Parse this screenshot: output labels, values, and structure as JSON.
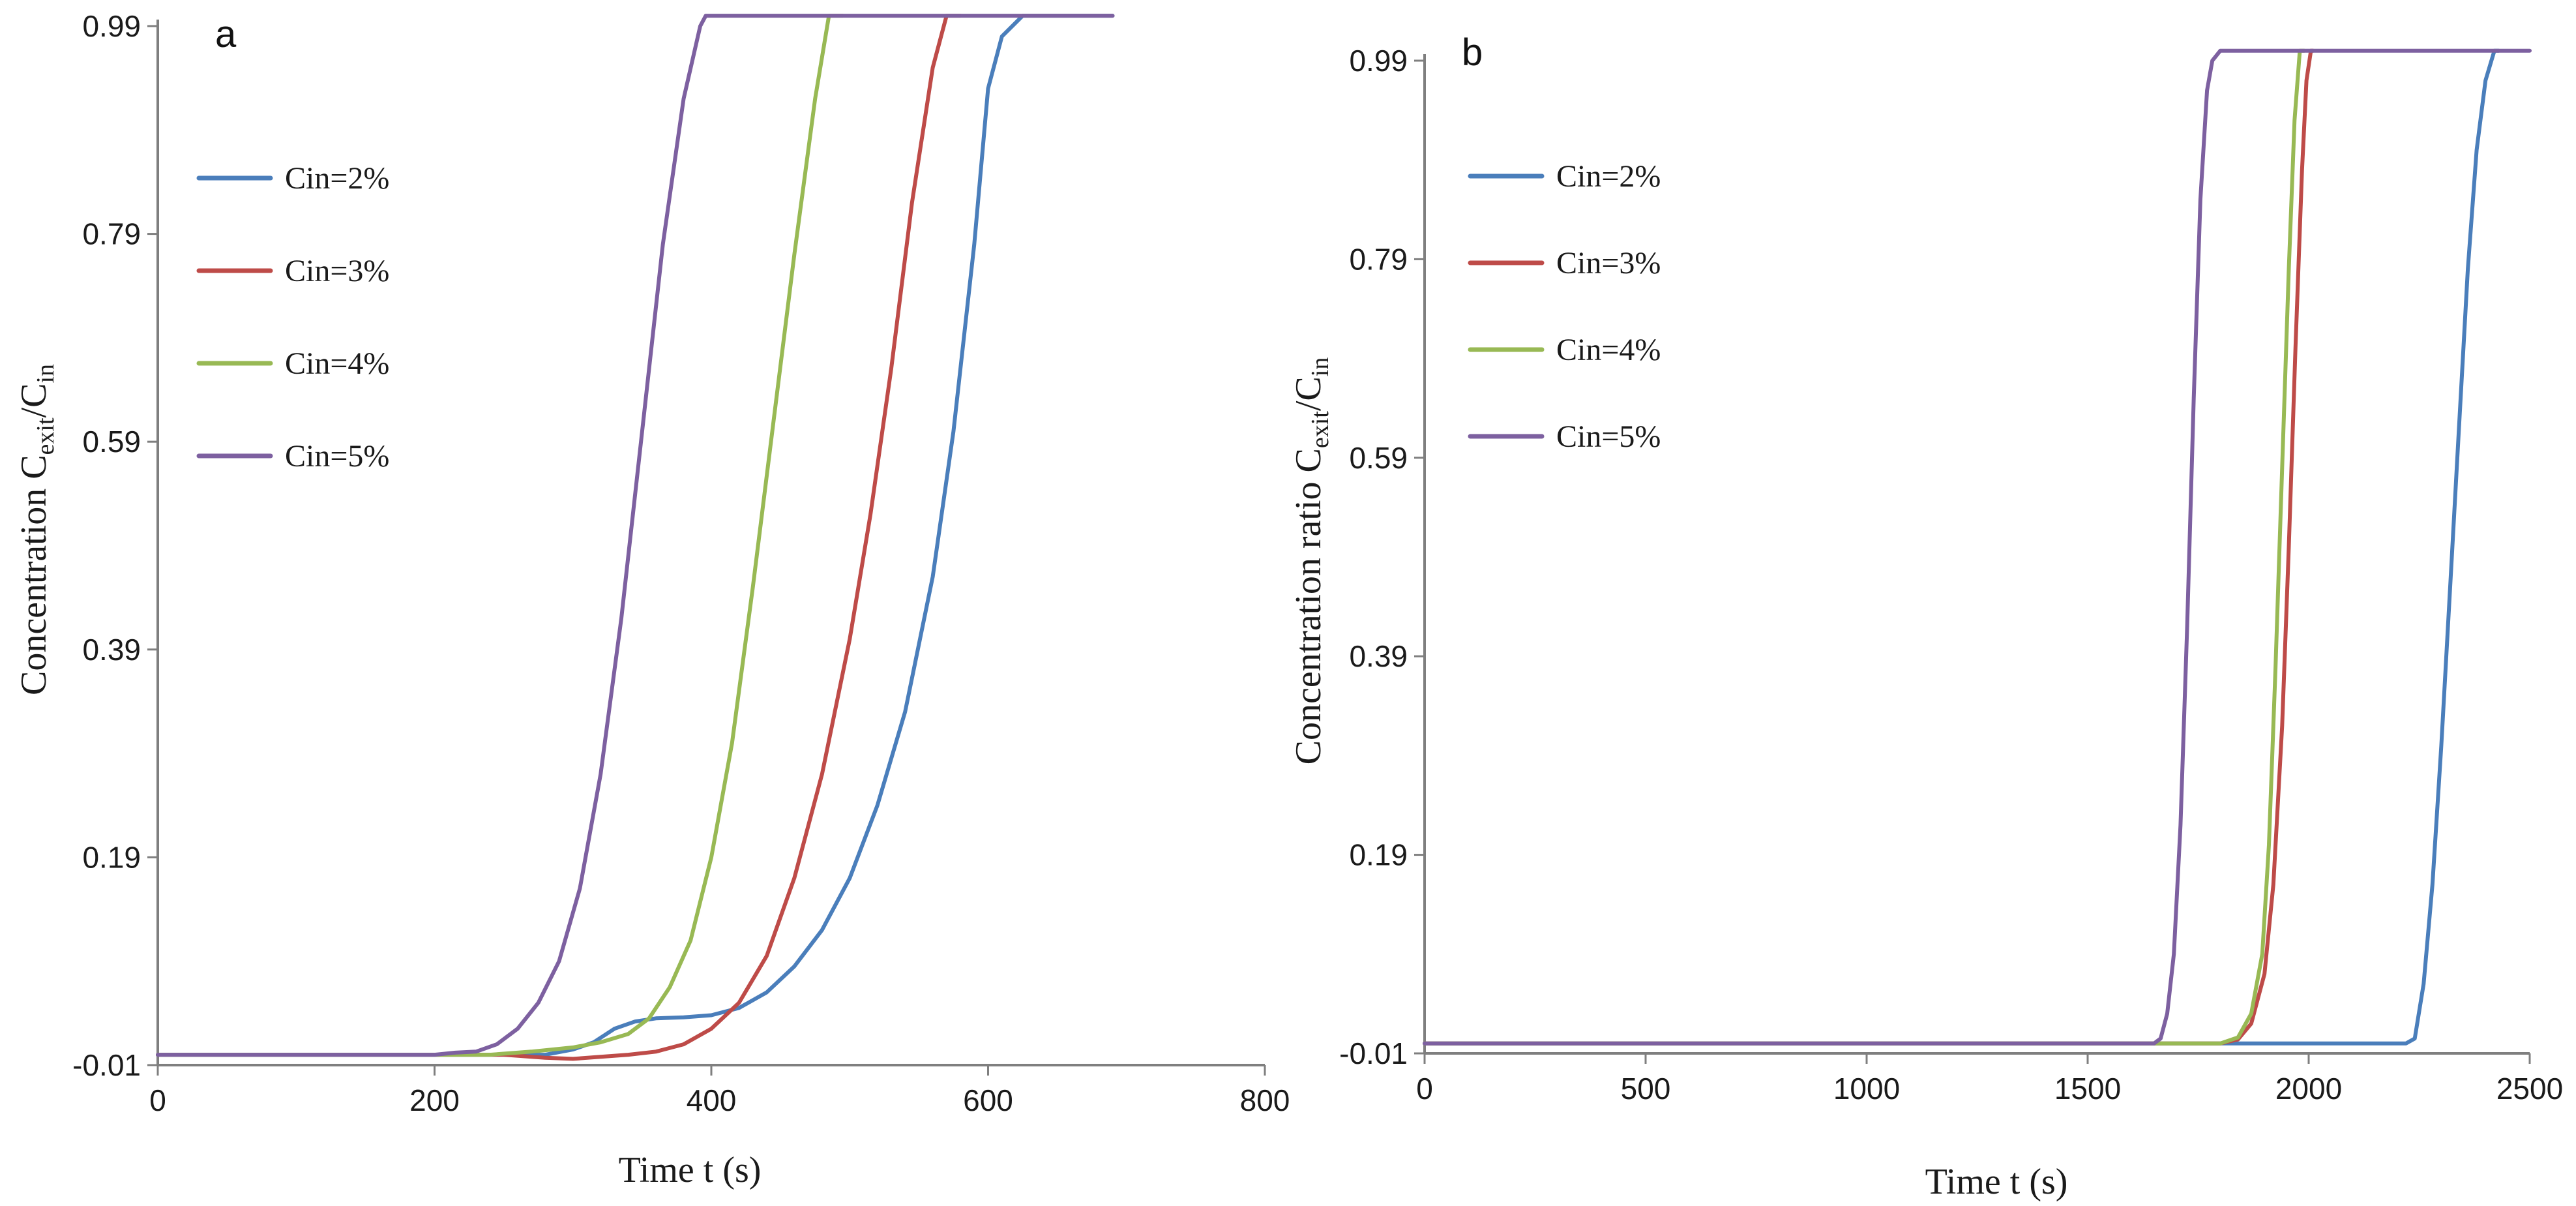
{
  "chart_data": [
    {
      "panel": "a",
      "type": "line",
      "title": "",
      "xlabel": "Time t (s)",
      "ylabel_main": "Concentration  C",
      "ylabel_sub1": "exit",
      "ylabel_mid": "/C",
      "ylabel_sub2": "in",
      "xlim": [
        0,
        800
      ],
      "ylim": [
        -0.01,
        0.99
      ],
      "xticks": [
        0,
        200,
        400,
        600,
        800
      ],
      "xtick_labels": [
        "0",
        "200",
        "400",
        "600",
        "800"
      ],
      "yticks": [
        -0.01,
        0.19,
        0.39,
        0.59,
        0.79,
        0.99
      ],
      "ytick_labels": [
        "-0.01",
        "0.19",
        "0.39",
        "0.59",
        "0.79",
        "0.99"
      ],
      "grid": false,
      "legend_position": "upper-left",
      "series": [
        {
          "name": "Cin=2%",
          "color": "#4a7ebb",
          "points": [
            [
              0,
              0
            ],
            [
              200,
              0
            ],
            [
              235,
              0
            ],
            [
              280,
              0
            ],
            [
              300,
              0.005
            ],
            [
              315,
              0.012
            ],
            [
              330,
              0.025
            ],
            [
              345,
              0.032
            ],
            [
              360,
              0.035
            ],
            [
              380,
              0.036
            ],
            [
              400,
              0.038
            ],
            [
              420,
              0.045
            ],
            [
              440,
              0.06
            ],
            [
              460,
              0.085
            ],
            [
              480,
              0.12
            ],
            [
              500,
              0.17
            ],
            [
              520,
              0.24
            ],
            [
              540,
              0.33
            ],
            [
              560,
              0.46
            ],
            [
              575,
              0.6
            ],
            [
              590,
              0.78
            ],
            [
              600,
              0.93
            ],
            [
              610,
              0.98
            ],
            [
              625,
              1.0
            ],
            [
              690,
              1.0
            ]
          ]
        },
        {
          "name": "Cin=3%",
          "color": "#be4b48",
          "points": [
            [
              0,
              0
            ],
            [
              200,
              0
            ],
            [
              250,
              0
            ],
            [
              280,
              -0.003
            ],
            [
              300,
              -0.004
            ],
            [
              320,
              -0.002
            ],
            [
              340,
              0.0
            ],
            [
              360,
              0.003
            ],
            [
              380,
              0.01
            ],
            [
              400,
              0.025
            ],
            [
              420,
              0.05
            ],
            [
              440,
              0.095
            ],
            [
              460,
              0.17
            ],
            [
              480,
              0.27
            ],
            [
              500,
              0.4
            ],
            [
              515,
              0.52
            ],
            [
              530,
              0.66
            ],
            [
              545,
              0.82
            ],
            [
              560,
              0.95
            ],
            [
              570,
              1.0
            ],
            [
              580,
              1.0
            ]
          ]
        },
        {
          "name": "Cin=4%",
          "color": "#98b954",
          "points": [
            [
              0,
              0
            ],
            [
              200,
              0
            ],
            [
              240,
              0
            ],
            [
              270,
              0.003
            ],
            [
              300,
              0.007
            ],
            [
              320,
              0.012
            ],
            [
              340,
              0.02
            ],
            [
              355,
              0.035
            ],
            [
              370,
              0.065
            ],
            [
              385,
              0.11
            ],
            [
              400,
              0.19
            ],
            [
              415,
              0.3
            ],
            [
              430,
              0.45
            ],
            [
              445,
              0.61
            ],
            [
              460,
              0.77
            ],
            [
              475,
              0.92
            ],
            [
              485,
              1.0
            ],
            [
              495,
              1.0
            ]
          ]
        },
        {
          "name": "Cin=5%",
          "color": "#7d60a0",
          "points": [
            [
              0,
              0
            ],
            [
              200,
              0
            ],
            [
              215,
              0.002
            ],
            [
              230,
              0.003
            ],
            [
              245,
              0.01
            ],
            [
              260,
              0.025
            ],
            [
              275,
              0.05
            ],
            [
              290,
              0.09
            ],
            [
              305,
              0.16
            ],
            [
              320,
              0.27
            ],
            [
              335,
              0.42
            ],
            [
              350,
              0.6
            ],
            [
              365,
              0.78
            ],
            [
              380,
              0.92
            ],
            [
              392,
              0.99
            ],
            [
              396,
              1.0
            ],
            [
              420,
              1.0
            ],
            [
              690,
              1.0
            ]
          ]
        }
      ]
    },
    {
      "panel": "b",
      "type": "line",
      "title": "",
      "xlabel": "Time t (s)",
      "ylabel_main": "Concentration ratio C",
      "ylabel_sub1": "exit",
      "ylabel_mid": "/C",
      "ylabel_sub2": "in",
      "xlim": [
        0,
        2500
      ],
      "ylim": [
        -0.01,
        0.99
      ],
      "xticks": [
        0,
        500,
        1000,
        1500,
        2000,
        2500
      ],
      "xtick_labels": [
        "0",
        "500",
        "1000",
        "1500",
        "2000",
        "2500"
      ],
      "yticks": [
        -0.01,
        0.19,
        0.39,
        0.59,
        0.79,
        0.99
      ],
      "ytick_labels": [
        "-0.01",
        "0.19",
        "0.39",
        "0.59",
        "0.79",
        "0.99"
      ],
      "grid": false,
      "legend_position": "upper-left",
      "series": [
        {
          "name": "Cin=2%",
          "color": "#4a7ebb",
          "points": [
            [
              0,
              0
            ],
            [
              2220,
              0
            ],
            [
              2240,
              0.005
            ],
            [
              2260,
              0.06
            ],
            [
              2280,
              0.16
            ],
            [
              2300,
              0.3
            ],
            [
              2320,
              0.46
            ],
            [
              2340,
              0.62
            ],
            [
              2360,
              0.78
            ],
            [
              2380,
              0.9
            ],
            [
              2400,
              0.97
            ],
            [
              2420,
              1.0
            ],
            [
              2430,
              1.0
            ]
          ]
        },
        {
          "name": "Cin=3%",
          "color": "#be4b48",
          "points": [
            [
              0,
              0
            ],
            [
              1800,
              0
            ],
            [
              1840,
              0.004
            ],
            [
              1870,
              0.02
            ],
            [
              1900,
              0.07
            ],
            [
              1920,
              0.16
            ],
            [
              1940,
              0.32
            ],
            [
              1955,
              0.5
            ],
            [
              1970,
              0.7
            ],
            [
              1985,
              0.88
            ],
            [
              1995,
              0.97
            ],
            [
              2005,
              1.0
            ],
            [
              2010,
              1.0
            ]
          ]
        },
        {
          "name": "Cin=4%",
          "color": "#98b954",
          "points": [
            [
              0,
              0
            ],
            [
              1800,
              0
            ],
            [
              1840,
              0.006
            ],
            [
              1870,
              0.03
            ],
            [
              1895,
              0.09
            ],
            [
              1910,
              0.2
            ],
            [
              1925,
              0.38
            ],
            [
              1940,
              0.58
            ],
            [
              1955,
              0.78
            ],
            [
              1968,
              0.93
            ],
            [
              1980,
              1.0
            ],
            [
              1990,
              1.0
            ]
          ]
        },
        {
          "name": "Cin=5%",
          "color": "#7d60a0",
          "points": [
            [
              0,
              0
            ],
            [
              1650,
              0
            ],
            [
              1665,
              0.005
            ],
            [
              1680,
              0.03
            ],
            [
              1695,
              0.09
            ],
            [
              1710,
              0.22
            ],
            [
              1725,
              0.42
            ],
            [
              1740,
              0.65
            ],
            [
              1755,
              0.85
            ],
            [
              1770,
              0.96
            ],
            [
              1782,
              0.99
            ],
            [
              1800,
              1.0
            ],
            [
              2500,
              1.0
            ]
          ]
        }
      ]
    }
  ]
}
